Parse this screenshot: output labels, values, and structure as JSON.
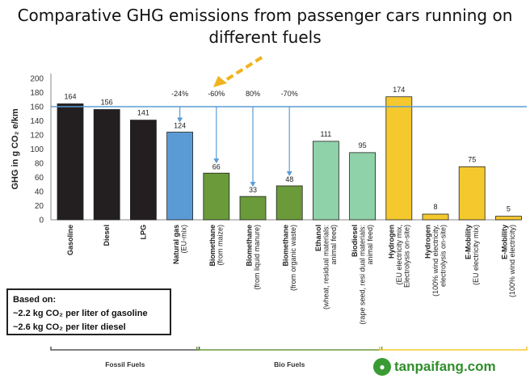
{
  "title_line1": "Comparative GHG emissions from passenger cars running on",
  "title_line2": "different fuels",
  "basis": {
    "heading": "Based on:",
    "line1": "~2.2 kg CO₂ per liter of gasoline",
    "line2": "~2.6 kg CO₂ per liter diesel"
  },
  "watermark": "tanpaifang.com",
  "colors": {
    "fossil": "#231f20",
    "natural_gas": "#5b9bd5",
    "bio": "#6a9a3a",
    "bio_light": "#8fd1a8",
    "electric": "#f5c92e",
    "reference_line": "#5b9bd5",
    "arrow": "#5b9bd5",
    "highlight_arrow": "#f0b31d"
  },
  "chart_data": {
    "type": "bar",
    "ylabel": "GHG in g CO₂ e/km",
    "ylim": [
      0,
      200
    ],
    "yticks": [
      0,
      20,
      40,
      60,
      80,
      100,
      120,
      140,
      160,
      180,
      200
    ],
    "reference_value": 160,
    "categories": [
      [
        "Gasoline"
      ],
      [
        "Diesel"
      ],
      [
        "LPG"
      ],
      [
        "Natural gas",
        "(EU-mix)"
      ],
      [
        "Biomethane",
        "(from maize)"
      ],
      [
        "Biomethane",
        "(from liquid manure)"
      ],
      [
        "Biomethane",
        "(from organic waste)"
      ],
      [
        "Ethanol",
        "(wheat, residual materials:",
        "animal feed)"
      ],
      [
        "Biodiesel",
        "(rape seed, resi dual materials:",
        "animal feed)"
      ],
      [
        "Hydrogen",
        "(EU electricity mix,",
        "Electrolysis on-site)"
      ],
      [
        "Hydrogen",
        "(100% wind electricity,",
        "electrolysis on-site)"
      ],
      [
        "E-Mobility",
        "(EU electricity mix)"
      ],
      [
        "E-Mobility",
        "(100% wind electricity)"
      ]
    ],
    "values": [
      164,
      156,
      141,
      124,
      66,
      33,
      48,
      111,
      95,
      174,
      8,
      75,
      5
    ],
    "data_labels": [
      "164",
      "156",
      "141",
      "124",
      "66",
      "33",
      "48",
      "111",
      "95",
      "174",
      "8",
      "75",
      "5"
    ],
    "bar_colors": [
      "fossil",
      "fossil",
      "fossil",
      "natural_gas",
      "bio",
      "bio",
      "bio",
      "bio_light",
      "bio_light",
      "electric",
      "electric",
      "electric",
      "electric"
    ],
    "reductions": [
      {
        "label": "-24%",
        "bar_index": 3
      },
      {
        "label": "-60%",
        "bar_index": 4
      },
      {
        "label": "80%",
        "bar_index": 5
      },
      {
        "label": "-70%",
        "bar_index": 6
      }
    ],
    "groups": [
      {
        "label": "Fossil Fuels",
        "from": 0,
        "to": 3,
        "color": "#555555"
      },
      {
        "label": "Bio Fuels",
        "from": 4,
        "to": 8,
        "color": "#6a9a3a"
      },
      {
        "label": "",
        "from": 9,
        "to": 12,
        "color": "#f5c92e"
      }
    ]
  }
}
